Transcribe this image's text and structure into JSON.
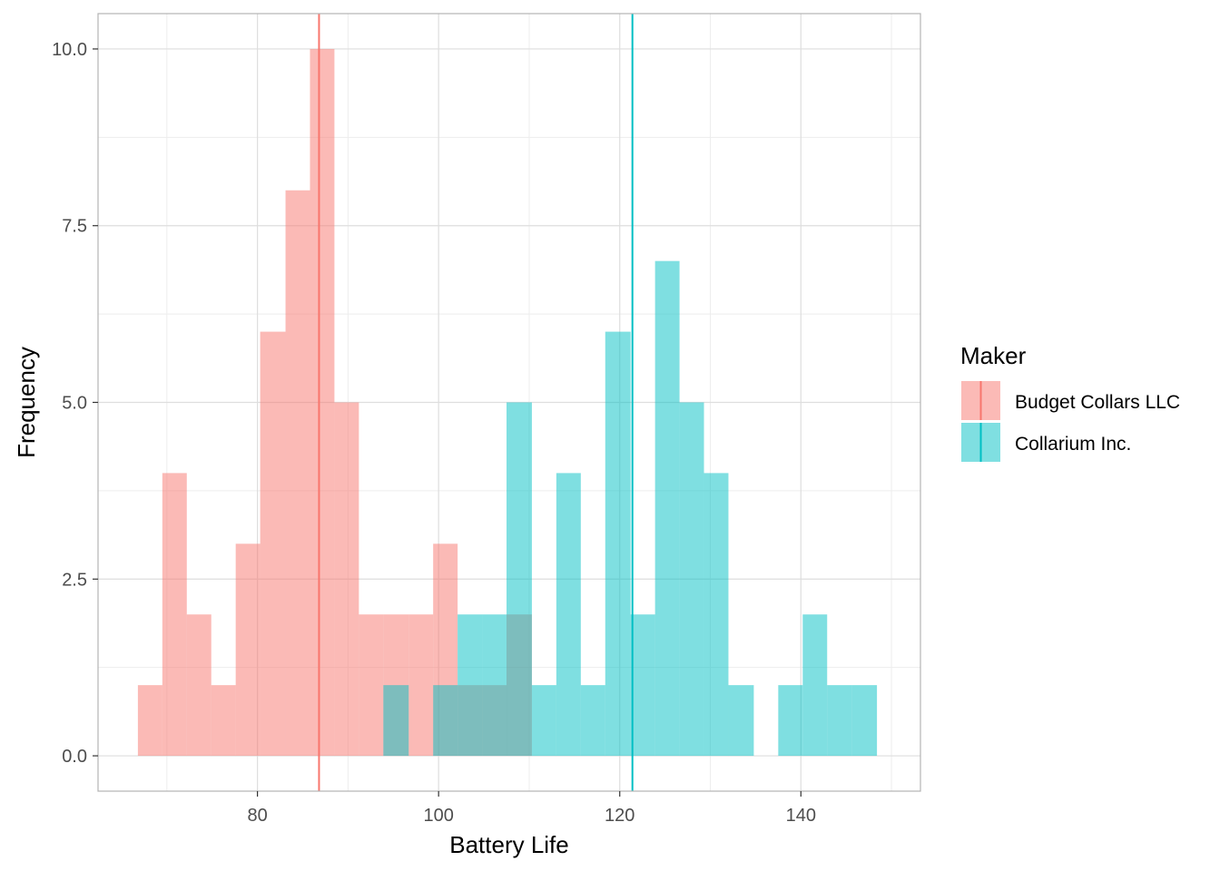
{
  "chart_data": {
    "type": "histogram",
    "title": "",
    "xlabel": "Battery Life",
    "ylabel": "Frequency",
    "xlim": [
      62.4,
      153.2
    ],
    "ylim": [
      -0.5,
      10.5
    ],
    "x_ticks": [
      80,
      100,
      120,
      140
    ],
    "x_tick_labels": [
      "80",
      "100",
      "120",
      "140"
    ],
    "y_ticks": [
      0,
      2.5,
      5,
      7.5,
      10
    ],
    "y_tick_labels": [
      "0.0",
      "2.5",
      "5.0",
      "7.5",
      "10.0"
    ],
    "grid": true,
    "bin_width": 2.72,
    "legend": {
      "title": "Maker",
      "placement": "right"
    },
    "series": [
      {
        "name": "Budget Collars LLC",
        "color": "#F8766D",
        "fill_alpha": 0.5,
        "mean": 86.8,
        "bins": [
          {
            "x0": 66.8,
            "x1": 69.5,
            "count": 1
          },
          {
            "x0": 69.5,
            "x1": 72.2,
            "count": 4
          },
          {
            "x0": 72.2,
            "x1": 74.9,
            "count": 2
          },
          {
            "x0": 74.9,
            "x1": 77.6,
            "count": 1
          },
          {
            "x0": 77.6,
            "x1": 80.3,
            "count": 3
          },
          {
            "x0": 80.3,
            "x1": 83.1,
            "count": 6
          },
          {
            "x0": 83.1,
            "x1": 85.8,
            "count": 8
          },
          {
            "x0": 85.8,
            "x1": 88.5,
            "count": 10
          },
          {
            "x0": 88.5,
            "x1": 91.2,
            "count": 5
          },
          {
            "x0": 91.2,
            "x1": 93.9,
            "count": 2
          },
          {
            "x0": 93.9,
            "x1": 96.7,
            "count": 2
          },
          {
            "x0": 96.7,
            "x1": 99.4,
            "count": 2
          },
          {
            "x0": 99.4,
            "x1": 102.1,
            "count": 3
          },
          {
            "x0": 102.1,
            "x1": 104.8,
            "count": 1
          },
          {
            "x0": 104.8,
            "x1": 107.5,
            "count": 1
          },
          {
            "x0": 107.5,
            "x1": 110.3,
            "count": 2
          }
        ]
      },
      {
        "name": "Collarium Inc.",
        "color": "#00BFC4",
        "fill_alpha": 0.5,
        "mean": 121.4,
        "bins": [
          {
            "x0": 93.9,
            "x1": 96.7,
            "count": 1
          },
          {
            "x0": 99.4,
            "x1": 102.1,
            "count": 1
          },
          {
            "x0": 102.1,
            "x1": 104.8,
            "count": 2
          },
          {
            "x0": 104.8,
            "x1": 107.5,
            "count": 2
          },
          {
            "x0": 107.5,
            "x1": 110.3,
            "count": 5
          },
          {
            "x0": 110.3,
            "x1": 113.0,
            "count": 1
          },
          {
            "x0": 113.0,
            "x1": 115.7,
            "count": 4
          },
          {
            "x0": 115.7,
            "x1": 118.4,
            "count": 1
          },
          {
            "x0": 118.4,
            "x1": 121.2,
            "count": 6
          },
          {
            "x0": 121.2,
            "x1": 123.9,
            "count": 2
          },
          {
            "x0": 123.9,
            "x1": 126.6,
            "count": 7
          },
          {
            "x0": 126.6,
            "x1": 129.3,
            "count": 5
          },
          {
            "x0": 129.3,
            "x1": 132.0,
            "count": 4
          },
          {
            "x0": 132.0,
            "x1": 134.8,
            "count": 1
          },
          {
            "x0": 137.5,
            "x1": 140.2,
            "count": 1
          },
          {
            "x0": 140.2,
            "x1": 142.9,
            "count": 2
          },
          {
            "x0": 142.9,
            "x1": 145.6,
            "count": 1
          },
          {
            "x0": 145.6,
            "x1": 148.4,
            "count": 1
          }
        ]
      }
    ]
  }
}
